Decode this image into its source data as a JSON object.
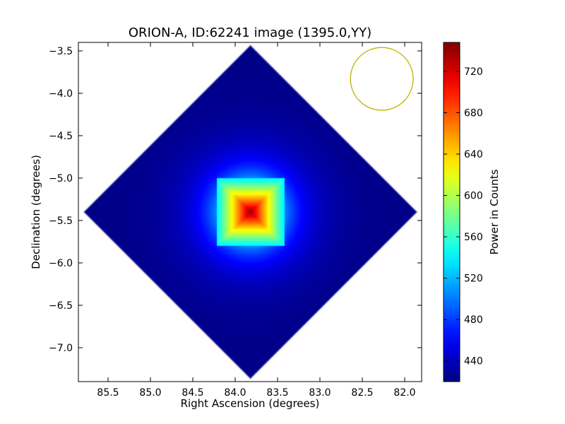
{
  "chart_data": {
    "type": "heatmap",
    "title": "ORION-A, ID:62241 image (1395.0,YY)",
    "xlabel": "Right Ascension (degrees)",
    "ylabel": "Declination (degrees)",
    "xlim": [
      85.85,
      81.8
    ],
    "ylim": [
      -7.4,
      -3.4
    ],
    "x_ticks": [
      85.5,
      85.0,
      84.5,
      84.0,
      83.5,
      83.0,
      82.5,
      82.0
    ],
    "x_tick_labels": [
      "85.5",
      "85.0",
      "84.5",
      "84.0",
      "83.5",
      "83.0",
      "82.5",
      "82.0"
    ],
    "y_ticks": [
      -3.5,
      -4.0,
      -4.5,
      -5.0,
      -5.5,
      -6.0,
      -6.5,
      -7.0
    ],
    "y_tick_labels": [
      "−3.5",
      "−4.0",
      "−4.5",
      "−5.0",
      "−5.5",
      "−6.0",
      "−6.5",
      "−7.0"
    ],
    "colorbar": {
      "label": "Power in Counts",
      "colormap": "jet",
      "range": [
        420,
        748
      ],
      "ticks": [
        440,
        480,
        520,
        560,
        600,
        640,
        680,
        720
      ],
      "tick_labels": [
        "440",
        "480",
        "520",
        "560",
        "600",
        "640",
        "680",
        "720"
      ]
    },
    "field": {
      "shape": "diamond",
      "center_ra": 83.82,
      "center_dec": -5.4,
      "half_extent_ra": 1.98,
      "half_extent_dec": 1.98,
      "background_value": 422
    },
    "source": {
      "center_ra": 83.82,
      "center_dec": -5.4,
      "peak_value": 745,
      "core_halfwidth_deg": 0.4,
      "halo_halfwidth_deg": 0.9
    },
    "beam_marker": {
      "shape": "circle",
      "center_ra": 82.27,
      "center_dec": -3.83,
      "radius_deg": 0.37,
      "color": "#bdb300"
    }
  }
}
